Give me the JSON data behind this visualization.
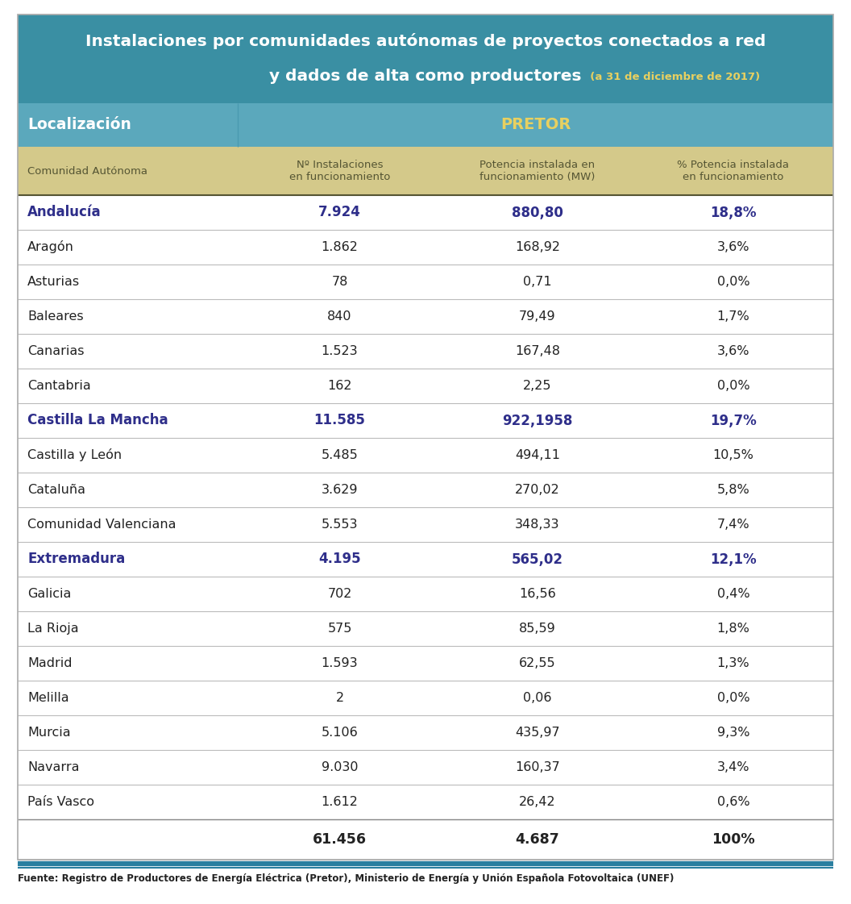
{
  "title_line1": "Instalaciones por comunidades autónomas de proyectos conectados a red",
  "title_line2": "y dados de alta como productores",
  "title_suffix": "  (a 31 de diciembre de 2017)",
  "title_bg": "#3a8fa3",
  "title_text_color": "#ffffff",
  "title_suffix_color": "#e8d060",
  "header1_bg": "#5ba8bc",
  "header1_text": "Localización",
  "header1_right": "PRETOR",
  "header1_text_color": "#ffffff",
  "header1_right_color": "#e8d060",
  "header2_bg": "#d4c98a",
  "header2_text_color": "#555533",
  "col_headers": [
    "Comunidad Autónoma",
    "Nº Instalaciones\nen funcionamiento",
    "Potencia instalada en\nfuncionamiento (MW)",
    "% Potencia instalada\nen funcionamiento"
  ],
  "rows": [
    {
      "name": "Andalucía",
      "bold": true,
      "instalaciones": "7.924",
      "potencia": "880,80",
      "pct": "18,8%"
    },
    {
      "name": "Aragón",
      "bold": false,
      "instalaciones": "1.862",
      "potencia": "168,92",
      "pct": "3,6%"
    },
    {
      "name": "Asturias",
      "bold": false,
      "instalaciones": "78",
      "potencia": "0,71",
      "pct": "0,0%"
    },
    {
      "name": "Baleares",
      "bold": false,
      "instalaciones": "840",
      "potencia": "79,49",
      "pct": "1,7%"
    },
    {
      "name": "Canarias",
      "bold": false,
      "instalaciones": "1.523",
      "potencia": "167,48",
      "pct": "3,6%"
    },
    {
      "name": "Cantabria",
      "bold": false,
      "instalaciones": "162",
      "potencia": "2,25",
      "pct": "0,0%"
    },
    {
      "name": "Castilla La Mancha",
      "bold": true,
      "instalaciones": "11.585",
      "potencia": "922,1958",
      "pct": "19,7%"
    },
    {
      "name": "Castilla y León",
      "bold": false,
      "instalaciones": "5.485",
      "potencia": "494,11",
      "pct": "10,5%"
    },
    {
      "name": "Cataluña",
      "bold": false,
      "instalaciones": "3.629",
      "potencia": "270,02",
      "pct": "5,8%"
    },
    {
      "name": "Comunidad Valenciana",
      "bold": false,
      "instalaciones": "5.553",
      "potencia": "348,33",
      "pct": "7,4%"
    },
    {
      "name": "Extremadura",
      "bold": true,
      "instalaciones": "4.195",
      "potencia": "565,02",
      "pct": "12,1%"
    },
    {
      "name": "Galicia",
      "bold": false,
      "instalaciones": "702",
      "potencia": "16,56",
      "pct": "0,4%"
    },
    {
      "name": "La Rioja",
      "bold": false,
      "instalaciones": "575",
      "potencia": "85,59",
      "pct": "1,8%"
    },
    {
      "name": "Madrid",
      "bold": false,
      "instalaciones": "1.593",
      "potencia": "62,55",
      "pct": "1,3%"
    },
    {
      "name": "Melilla",
      "bold": false,
      "instalaciones": "2",
      "potencia": "0,06",
      "pct": "0,0%"
    },
    {
      "name": "Murcia",
      "bold": false,
      "instalaciones": "5.106",
      "potencia": "435,97",
      "pct": "9,3%"
    },
    {
      "name": "Navarra",
      "bold": false,
      "instalaciones": "9.030",
      "potencia": "160,37",
      "pct": "3,4%"
    },
    {
      "name": "País Vasco",
      "bold": false,
      "instalaciones": "1.612",
      "potencia": "26,42",
      "pct": "0,6%"
    }
  ],
  "total_row": {
    "instalaciones": "61.456",
    "potencia": "4.687",
    "pct": "100%"
  },
  "footer": "Fuente: Registro de Productores de Energía Eléctrica (Pretor), Ministerio de Energía y Unión Española Fotovoltaica (UNEF)",
  "bold_color": "#2e2e8a",
  "normal_color": "#222222",
  "divider_color": "#bbbbbb",
  "thick_divider_color": "#2a7fa0",
  "bg_color": "#ffffff"
}
